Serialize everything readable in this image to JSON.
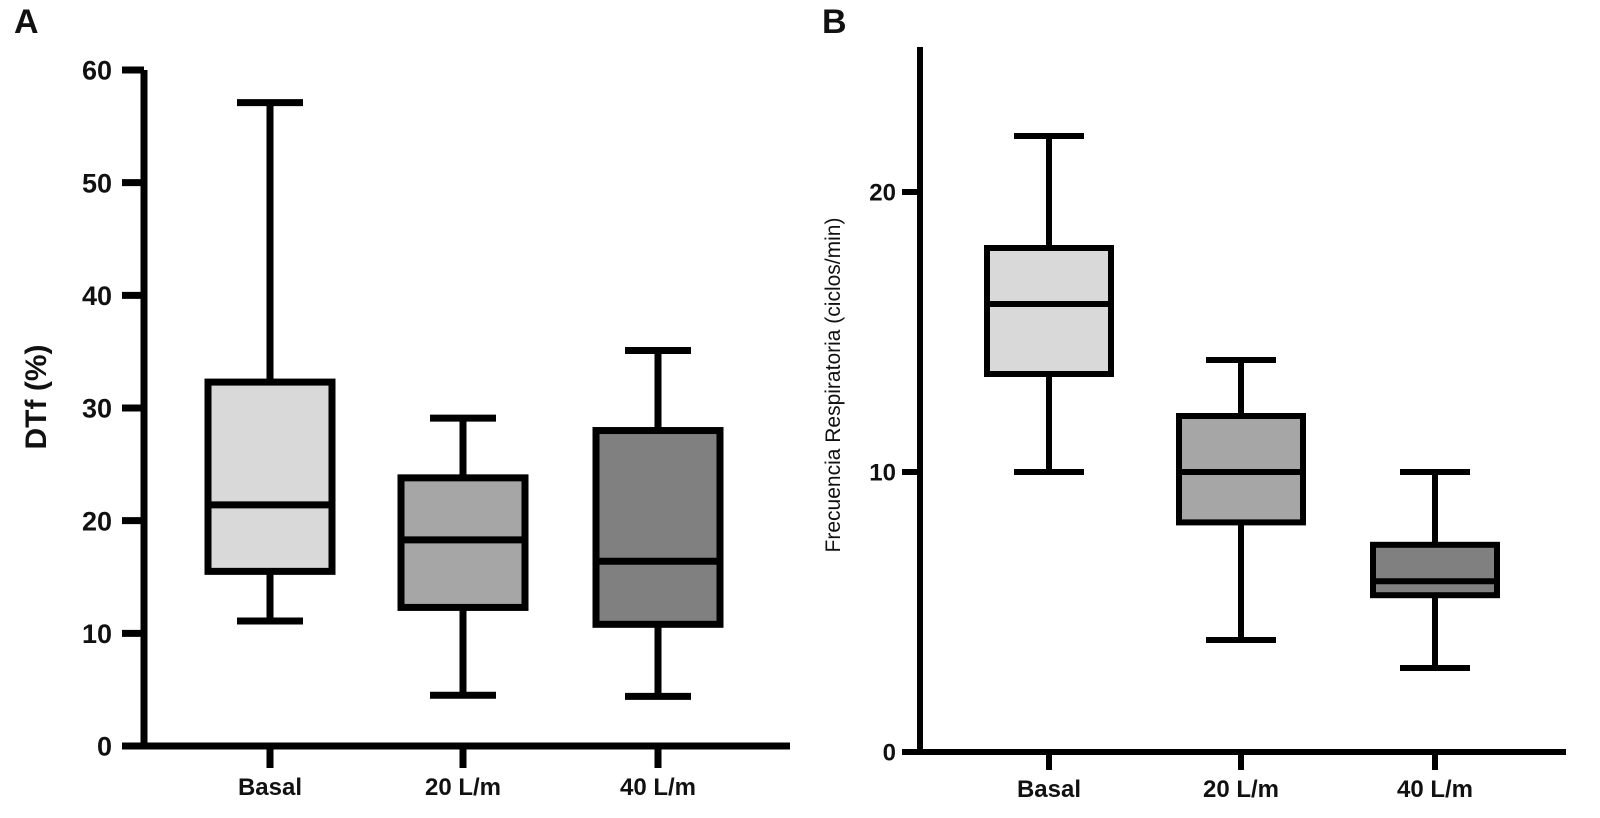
{
  "figure": {
    "panels": [
      "A",
      "B"
    ]
  },
  "chart_data": [
    {
      "type": "box",
      "panel": "A",
      "ylabel": "DTf (%)",
      "xlabel": "",
      "ylim": [
        0,
        60
      ],
      "yticks": [
        0,
        10,
        20,
        30,
        40,
        50,
        60
      ],
      "categories": [
        "Basal",
        "20 L/m",
        "40 L/m"
      ],
      "boxes": [
        {
          "category": "Basal",
          "whisker_low": 11.1,
          "q1": 15.5,
          "median": 21.4,
          "q3": 32.3,
          "whisker_high": 57.1,
          "fill": "#d9d9d9"
        },
        {
          "category": "20 L/m",
          "whisker_low": 4.5,
          "q1": 12.3,
          "median": 18.3,
          "q3": 23.8,
          "whisker_high": 29.1,
          "fill": "#a6a6a6"
        },
        {
          "category": "40 L/m",
          "whisker_low": 4.4,
          "q1": 10.8,
          "median": 16.4,
          "q3": 28.0,
          "whisker_high": 35.1,
          "fill": "#808080"
        }
      ],
      "grid": false,
      "legend": "none"
    },
    {
      "type": "box",
      "panel": "B",
      "ylabel": "Frecuencia Respiratoria (ciclos/min)",
      "xlabel": "",
      "ylim": [
        0,
        25
      ],
      "yticks": [
        0,
        10,
        20
      ],
      "categories": [
        "Basal",
        "20 L/m",
        "40 L/m"
      ],
      "boxes": [
        {
          "category": "Basal",
          "whisker_low": 10,
          "q1": 13.5,
          "median": 16,
          "q3": 18,
          "whisker_high": 22,
          "fill": "#d9d9d9"
        },
        {
          "category": "20 L/m",
          "whisker_low": 4,
          "q1": 8.2,
          "median": 10,
          "q3": 12,
          "whisker_high": 14,
          "fill": "#a6a6a6"
        },
        {
          "category": "40 L/m",
          "whisker_low": 3,
          "q1": 5.6,
          "median": 6.1,
          "q3": 7.4,
          "whisker_high": 10,
          "fill": "#808080"
        }
      ],
      "grid": false,
      "legend": "none"
    }
  ]
}
